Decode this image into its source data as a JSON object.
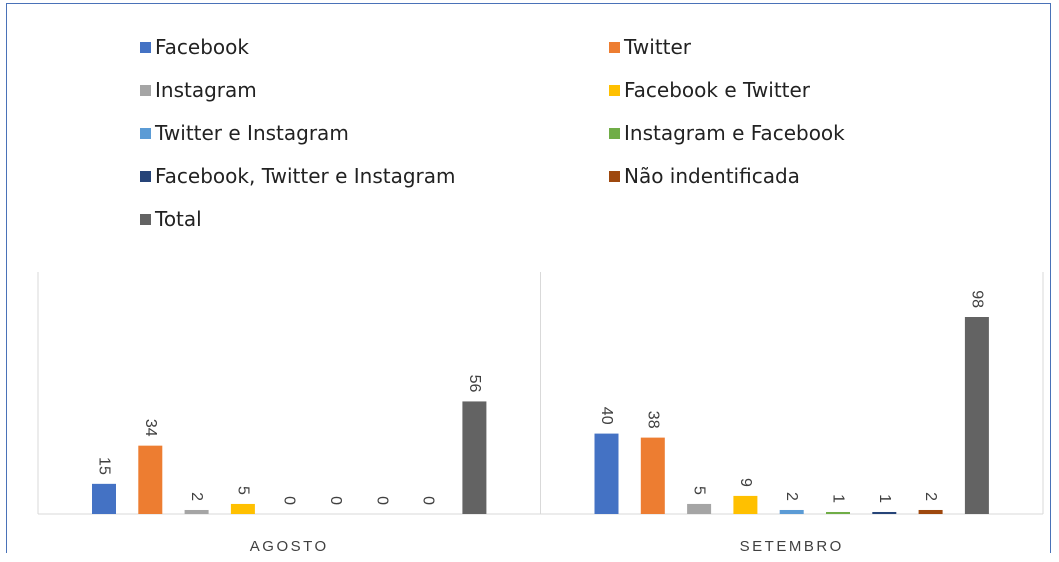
{
  "chart_data": {
    "type": "bar",
    "categories": [
      "AGOSTO",
      "SETEMBRO"
    ],
    "series": [
      {
        "name": "Facebook",
        "color": "#4472c4",
        "values": [
          15,
          40
        ]
      },
      {
        "name": "Twitter",
        "color": "#ed7d31",
        "values": [
          34,
          38
        ]
      },
      {
        "name": "Instagram",
        "color": "#a5a5a5",
        "values": [
          2,
          5
        ]
      },
      {
        "name": "Facebook e Twitter",
        "color": "#ffc000",
        "values": [
          5,
          9
        ]
      },
      {
        "name": "Twitter e Instagram",
        "color": "#5b9bd5",
        "values": [
          0,
          2
        ]
      },
      {
        "name": "Instagram e Facebook",
        "color": "#70ad47",
        "values": [
          0,
          1
        ]
      },
      {
        "name": "Facebook, Twitter e Instagram",
        "color": "#264478",
        "values": [
          0,
          1
        ]
      },
      {
        "name": "Não indentificada",
        "color": "#9e480e",
        "values": [
          0,
          2
        ]
      },
      {
        "name": "Total",
        "color": "#636363",
        "values": [
          56,
          98
        ]
      }
    ],
    "ylim": [
      0,
      105
    ],
    "grid": false,
    "legend": "top",
    "data_labels": true
  }
}
